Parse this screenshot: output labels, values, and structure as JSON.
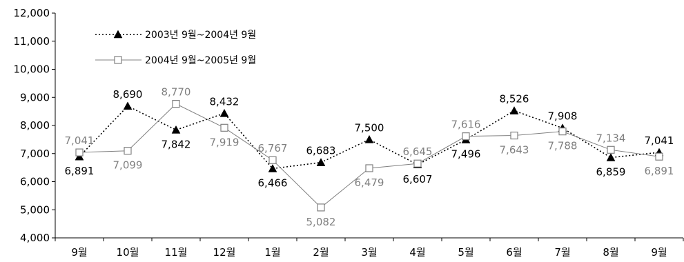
{
  "chart_data": {
    "type": "line",
    "title": "",
    "xlabel": "",
    "ylabel": "",
    "categories": [
      "9월",
      "10월",
      "11월",
      "12월",
      "1월",
      "2월",
      "3월",
      "4월",
      "5월",
      "6월",
      "7월",
      "8월",
      "9월"
    ],
    "ylim": [
      4000,
      12000
    ],
    "yticks": [
      4000,
      5000,
      6000,
      7000,
      8000,
      9000,
      10000,
      11000,
      12000
    ],
    "ytick_labels": [
      "4,000",
      "5,000",
      "6,000",
      "7,000",
      "8,000",
      "9,000",
      "10,000",
      "11,000",
      "12,000"
    ],
    "grid": false,
    "legend_position": "top-left",
    "series": [
      {
        "name": "2003년 9월~2004년 9월",
        "values": [
          6891,
          8690,
          7842,
          8432,
          6466,
          6683,
          7500,
          6607,
          7496,
          8526,
          7908,
          6859,
          7041
        ],
        "labels": [
          "6,891",
          "8,690",
          "7,842",
          "8,432",
          "6,466",
          "6,683",
          "7,500",
          "6,607",
          "7,496",
          "8,526",
          "7,908",
          "6,859",
          "7,041"
        ],
        "color": "#000000",
        "line_style": "dotted",
        "marker": "filled-triangle"
      },
      {
        "name": "2004년 9월~2005년 9월",
        "values": [
          7041,
          7099,
          8770,
          7919,
          6767,
          5082,
          6479,
          6645,
          7616,
          7643,
          7788,
          7134,
          6891
        ],
        "labels": [
          "7,041",
          "7,099",
          "8,770",
          "7,919",
          "6,767",
          "5,082",
          "6,479",
          "6,645",
          "7,616",
          "7,643",
          "7,788",
          "7,134",
          "6,891"
        ],
        "color": "#808080",
        "line_style": "solid",
        "marker": "open-square"
      }
    ]
  }
}
